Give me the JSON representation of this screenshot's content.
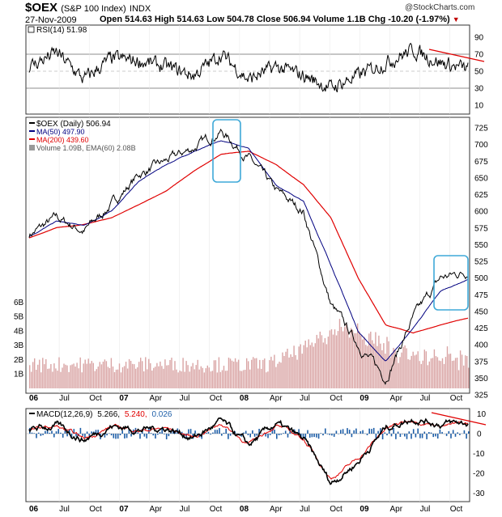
{
  "header": {
    "symbol": "$OEX",
    "name": "(S&P 100 Index)",
    "exchange": "INDX",
    "date": "27-Nov-2009",
    "watermark": "@StockCharts.com",
    "quote": "Open 514.63  High 514.63  Low 504.78  Close 506.94  Volume 1.1B  Chg -10.20 (-1.97%)",
    "down_marker": "▼"
  },
  "rsi_panel": {
    "legend": "RSI(14) 51.98",
    "ticks": [
      "90",
      "70",
      "50",
      "30",
      "10"
    ]
  },
  "price_panel": {
    "legend": [
      {
        "text": "$OEX (Daily) 506.94",
        "color": "#000000"
      },
      {
        "text": "MA(50) 497.90",
        "color": "#000080"
      },
      {
        "text": "MA(200) 439.60",
        "color": "#e00000"
      },
      {
        "text": "Volume 1.09B, EMA(60) 2.08B",
        "color": "#555555"
      }
    ],
    "right_ticks": [
      "725",
      "700",
      "675",
      "650",
      "625",
      "600",
      "575",
      "550",
      "525",
      "500",
      "475",
      "450",
      "425",
      "400",
      "375",
      "350",
      "325"
    ],
    "volume_ticks": [
      "6B",
      "5B",
      "4B",
      "3B",
      "2B",
      "1B"
    ]
  },
  "macd_panel": {
    "legend_label": "MACD(12,26,9)",
    "legend_macd": "5.266,",
    "legend_signal": "5.240,",
    "legend_hist": "0.026",
    "ticks": [
      "10",
      "0",
      "-10",
      "-20",
      "-30"
    ]
  },
  "x_axis_labels": [
    "06",
    "Jul",
    "Oct",
    "07",
    "Apr",
    "Jul",
    "Oct",
    "08",
    "Apr",
    "Jul",
    "Oct",
    "09",
    "Apr",
    "Jul",
    "Oct"
  ],
  "colors": {
    "price": "#000000",
    "ma50": "#000080",
    "ma200": "#e00000",
    "volume": "#d9a4a4",
    "highlight_box": "#3fa9d8",
    "trendline": "#e00000",
    "macd_hist": "#1f5fa8"
  },
  "chart_data": {
    "type": "line",
    "title": "$OEX (S&P 100 Index) INDX - Daily",
    "x": [
      "Jan 06",
      "Apr 06",
      "Jul 06",
      "Oct 06",
      "Jan 07",
      "Apr 07",
      "Jul 07",
      "Oct 07",
      "Jan 08",
      "Apr 08",
      "Jul 08",
      "Oct 08",
      "Jan 09",
      "Apr 09",
      "Jul 09",
      "Oct 09",
      "Nov 09"
    ],
    "series": [
      {
        "name": "$OEX (Daily)",
        "values": [
          565,
          590,
          570,
          610,
          655,
          675,
          695,
          720,
          680,
          630,
          600,
          460,
          400,
          350,
          440,
          500,
          510
        ]
      },
      {
        "name": "MA(50)",
        "values": [
          562,
          585,
          578,
          600,
          645,
          670,
          690,
          705,
          695,
          640,
          615,
          520,
          420,
          375,
          425,
          480,
          498
        ]
      },
      {
        "name": "MA(200)",
        "values": [
          560,
          575,
          580,
          590,
          610,
          630,
          660,
          685,
          690,
          670,
          640,
          590,
          500,
          430,
          418,
          430,
          440
        ]
      }
    ],
    "ylim": [
      325,
      725
    ],
    "volume_ylim": [
      0,
      6
    ],
    "volume_unit": "B",
    "rsi": {
      "ylim": [
        0,
        100
      ],
      "values": [
        55,
        72,
        40,
        65,
        62,
        55,
        45,
        70,
        40,
        55,
        45,
        30,
        45,
        60,
        75,
        60,
        52
      ]
    },
    "macd": {
      "ylim": [
        -33,
        13
      ],
      "values": [
        2,
        4,
        -3,
        4,
        2,
        3,
        -2,
        6,
        -6,
        5,
        -3,
        -25,
        -14,
        3,
        8,
        5,
        5.3
      ]
    },
    "annotations": [
      "highlight box around Oct 2007 peak",
      "highlight box around Sep-Nov 2009 rally",
      "downward trendline on RSI",
      "downward trendline on MACD"
    ]
  }
}
